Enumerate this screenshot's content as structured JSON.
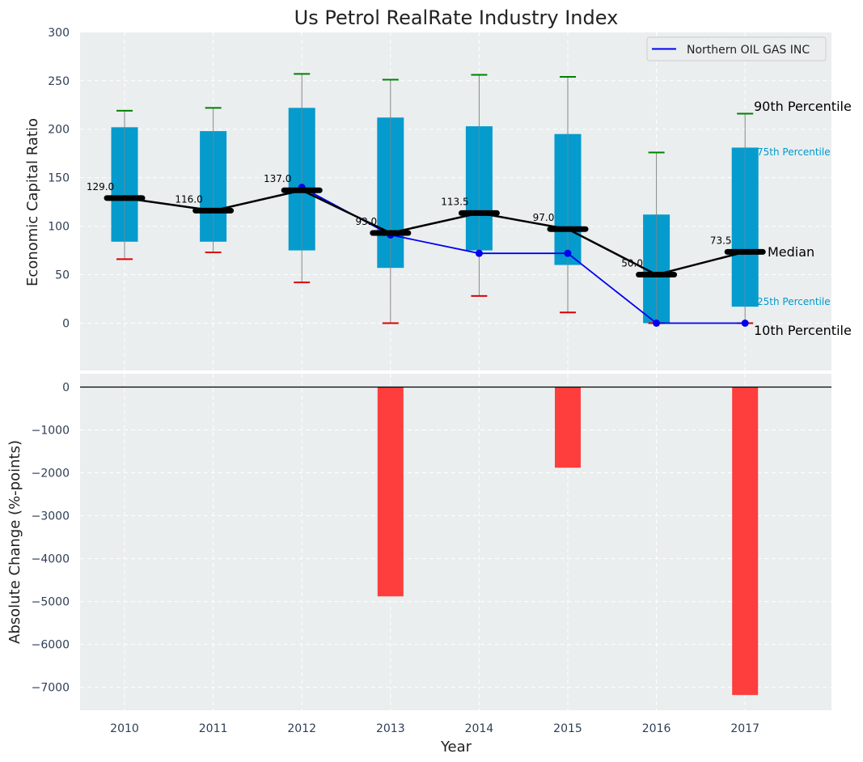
{
  "chart_data": {
    "type": "box_bar_composite",
    "title": "Us Petrol RealRate Industry Index",
    "xlabel": "Year",
    "years": [
      "2010",
      "2011",
      "2012",
      "2013",
      "2014",
      "2015",
      "2016",
      "2017"
    ],
    "top": {
      "ylabel": "Economic Capital Ratio",
      "ylim": [
        -50,
        300
      ],
      "yticks": [
        0,
        50,
        100,
        150,
        200,
        250,
        300
      ],
      "p10": [
        66,
        73,
        42,
        0,
        28,
        11,
        0,
        0
      ],
      "p25": [
        84,
        84,
        75,
        57,
        75,
        60,
        0,
        17
      ],
      "median": [
        129.0,
        116.0,
        137.0,
        93.0,
        113.5,
        97.0,
        50.0,
        73.5
      ],
      "median_labels": [
        "129.0",
        "116.0",
        "137.0",
        "93.0",
        "113.5",
        "97.0",
        "50.0",
        "73.5"
      ],
      "p75": [
        202,
        198,
        222,
        212,
        203,
        195,
        112,
        181
      ],
      "p90": [
        219,
        222,
        257,
        251,
        256,
        254,
        176,
        216
      ],
      "company": {
        "name": "Northern OIL GAS INC",
        "values": [
          null,
          null,
          140,
          91,
          72,
          72,
          0,
          0
        ]
      },
      "legend_position": "top-right",
      "annotations": {
        "p90": "90th Percentile",
        "p75": "75th Percentile",
        "median": "Median",
        "p25": "25th Percentile",
        "p10": "10th Percentile"
      }
    },
    "bottom": {
      "type": "bar",
      "ylabel": "Absolute Change (%-points)",
      "ylim": [
        -7500,
        0
      ],
      "yticks": [
        0,
        -1000,
        -2000,
        -3000,
        -4000,
        -5000,
        -6000,
        -7000
      ],
      "ytick_labels": [
        "0",
        "−1000",
        "−2000",
        "−3000",
        "−4000",
        "−5000",
        "−6000",
        "−7000"
      ],
      "values": [
        0,
        0,
        0,
        -4880,
        0,
        -1880,
        0,
        -7180
      ]
    }
  },
  "colors": {
    "box": "#0099cc",
    "median": "#000000",
    "company_line": "#0000ee",
    "p90_cap": "#008000",
    "p10_cap": "#dd0000",
    "bar": "#ff3333",
    "background": "#eaeeef",
    "whisker": "#888888",
    "annotation_25_75": "#0099cc"
  }
}
